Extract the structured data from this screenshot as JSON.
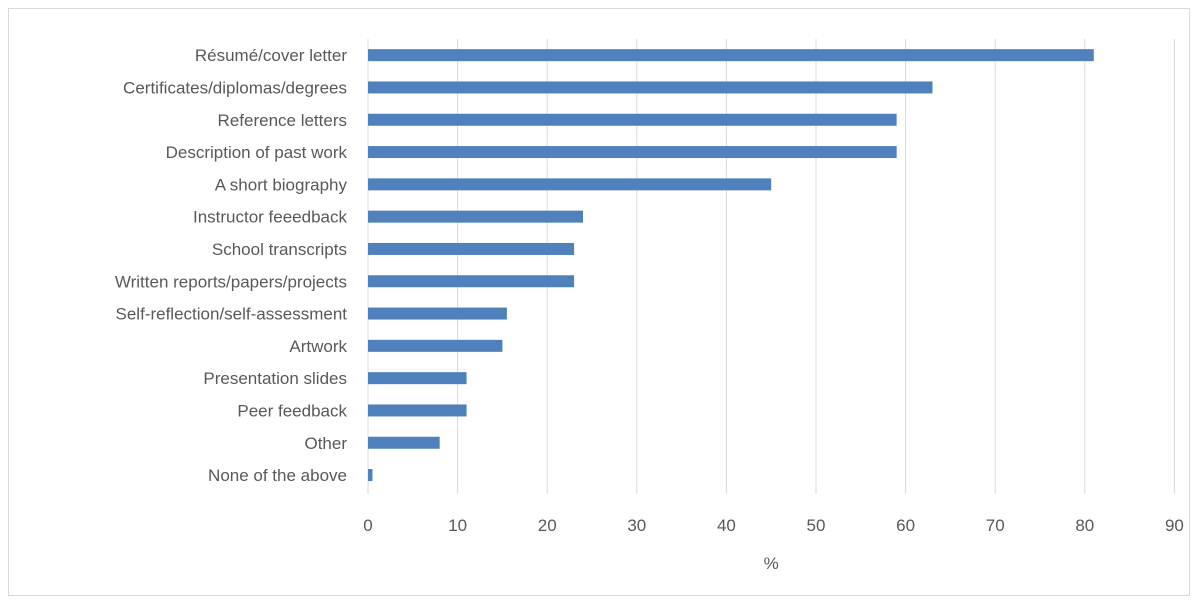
{
  "chart_data": {
    "type": "bar",
    "orientation": "horizontal",
    "categories": [
      "Résumé/cover letter",
      "Certificates/diplomas/degrees",
      "Reference letters",
      "Description of past work",
      "A short biography",
      "Instructor feeedback",
      "School transcripts",
      "Written reports/papers/projects",
      "Self-reflection/self-assessment",
      "Artwork",
      "Presentation slides",
      "Peer feedback",
      "Other",
      "None of the above"
    ],
    "values": [
      81,
      63,
      59,
      59,
      45,
      24,
      23,
      23,
      15.5,
      15,
      11,
      11,
      8,
      0.5
    ],
    "title": "",
    "xlabel": "%",
    "ylabel": "",
    "xlim": [
      0,
      90
    ],
    "xticks": [
      0,
      10,
      20,
      30,
      40,
      50,
      60,
      70,
      80,
      90
    ],
    "grid": "vertical",
    "legend": "none",
    "bar_color": "#4f81bd",
    "grid_color": "#d9d9d9",
    "text_color": "#595959"
  }
}
